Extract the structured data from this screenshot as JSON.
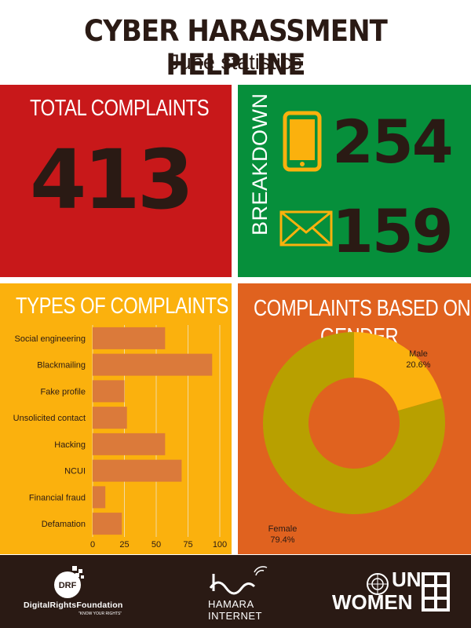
{
  "header": {
    "title": "CYBER HARASSMENT HELPLINE",
    "subtitle": "June statistics"
  },
  "total": {
    "label": "TOTAL COMPLAINTS",
    "value": "413"
  },
  "breakdown": {
    "label": "BREAKDOWN",
    "phone_icon": "phone-icon",
    "email_icon": "envelope-icon",
    "phone_count": "254",
    "email_count": "159"
  },
  "types_panel": {
    "title": "TYPES OF COMPLAINTS"
  },
  "gender_panel": {
    "title_line1": "COMPLAINTS BASED ON",
    "title_line2": "GENDER"
  },
  "footer": {
    "drf_name": "DigitalRightsFoundation",
    "drf_tagline": "\"KNOW YOUR RIGHTS\"",
    "drf_badge": "DRF",
    "hamara_line1": "HAMARA",
    "hamara_line2": "INTERNET",
    "unwomen_line1": "UN",
    "unwomen_line2": "WOMEN"
  },
  "colors": {
    "red": "#c8181a",
    "green": "#068f3b",
    "yellow": "#fbb10d",
    "orange": "#e0621f",
    "dark": "#2a1a14",
    "bar": "#db7a3a",
    "male": "#fbb10d",
    "female": "#b8a000"
  },
  "chart_data": [
    {
      "type": "bar",
      "orientation": "horizontal",
      "title": "TYPES OF COMPLAINTS",
      "categories": [
        "Social engineering",
        "Blackmailing",
        "Fake profile",
        "Unsolicited contact",
        "Hacking",
        "NCUI",
        "Financial fraud",
        "Defamation"
      ],
      "values": [
        57,
        94,
        25,
        27,
        57,
        70,
        10,
        23
      ],
      "xlim": [
        0,
        100
      ],
      "xticks": [
        "0",
        "25",
        "50",
        "75",
        "100"
      ],
      "grid": true
    },
    {
      "type": "pie",
      "donut": true,
      "title": "COMPLAINTS BASED ON GENDER",
      "labels": [
        "Male",
        "Female"
      ],
      "values": [
        20.6,
        79.4
      ],
      "value_labels": [
        "20.6%",
        "79.4%"
      ]
    }
  ]
}
